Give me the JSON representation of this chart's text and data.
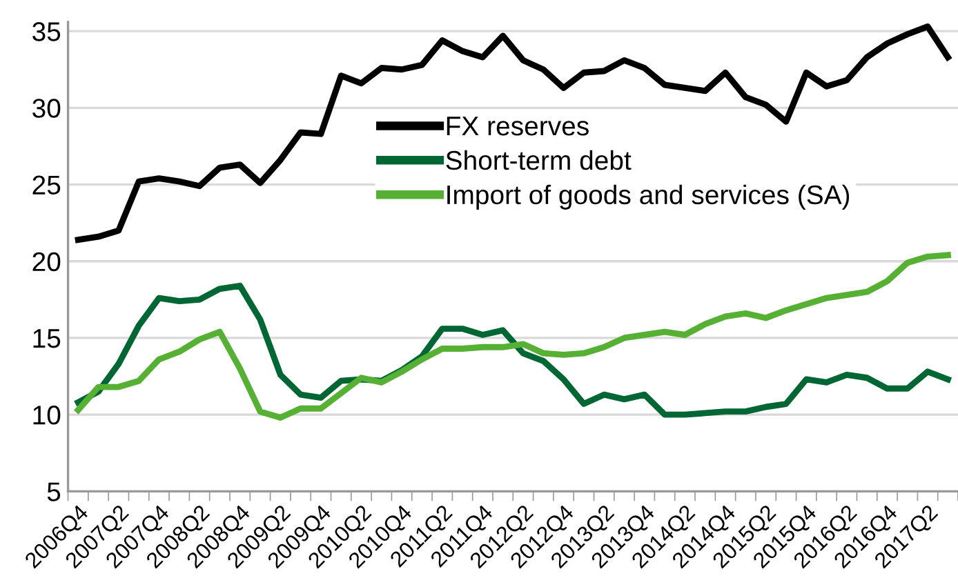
{
  "chart_data": {
    "type": "line",
    "categories": [
      "2006Q4",
      null,
      "2007Q2",
      null,
      "2007Q4",
      null,
      "2008Q2",
      null,
      "2008Q4",
      null,
      "2009Q2",
      null,
      "2009Q4",
      null,
      "2010Q2",
      null,
      "2010Q4",
      null,
      "2011Q2",
      null,
      "2011Q4",
      null,
      "2012Q2",
      null,
      "2012Q4",
      null,
      "2013Q2",
      null,
      "2013Q4",
      null,
      "2014Q2",
      null,
      "2014Q4",
      null,
      "2015Q2",
      null,
      "2015Q4",
      null,
      "2016Q2",
      null,
      "2016Q4",
      null,
      "2017Q2",
      null
    ],
    "series": [
      {
        "name": "FX reserves",
        "color": "#000000",
        "values": [
          21.4,
          21.6,
          22.0,
          25.2,
          25.4,
          25.2,
          24.9,
          26.1,
          26.3,
          25.1,
          26.6,
          28.4,
          28.3,
          32.1,
          31.6,
          32.6,
          32.5,
          32.8,
          34.4,
          33.7,
          33.3,
          34.7,
          33.1,
          32.5,
          31.3,
          32.3,
          32.4,
          33.1,
          32.6,
          31.5,
          31.3,
          31.1,
          32.3,
          30.7,
          30.2,
          29.1,
          32.3,
          31.4,
          31.8,
          33.3,
          34.2,
          34.8,
          35.3,
          33.3
        ]
      },
      {
        "name": "Short-term debt",
        "color": "#006633",
        "values": [
          10.8,
          11.5,
          13.3,
          15.8,
          17.6,
          17.4,
          17.5,
          18.2,
          18.4,
          16.2,
          12.6,
          11.3,
          11.1,
          12.2,
          12.3,
          12.2,
          12.9,
          13.8,
          15.6,
          15.6,
          15.2,
          15.5,
          14.0,
          13.5,
          12.3,
          10.7,
          11.3,
          11.0,
          11.3,
          10.0,
          10.0,
          10.1,
          10.2,
          10.2,
          10.5,
          10.7,
          12.3,
          12.1,
          12.6,
          12.4,
          11.7,
          11.7,
          12.8,
          12.3
        ]
      },
      {
        "name": "Import of goods and services (SA)",
        "color": "#55b033",
        "values": [
          10.3,
          11.8,
          11.8,
          12.2,
          13.6,
          14.1,
          14.9,
          15.4,
          13.0,
          10.2,
          9.8,
          10.4,
          10.4,
          11.4,
          12.4,
          12.1,
          12.8,
          13.6,
          14.3,
          14.3,
          14.4,
          14.4,
          14.6,
          14.0,
          13.9,
          14.0,
          14.4,
          15.0,
          15.2,
          15.4,
          15.2,
          15.9,
          16.4,
          16.6,
          16.3,
          16.8,
          17.2,
          17.6,
          17.8,
          18.0,
          18.7,
          19.9,
          20.3,
          20.4
        ]
      }
    ],
    "ylim": [
      5,
      35.6
    ],
    "yticks": [
      5,
      10,
      15,
      20,
      25,
      30,
      35
    ],
    "grid": "y",
    "legend": "top",
    "marker": "none",
    "line_style": "solid"
  }
}
